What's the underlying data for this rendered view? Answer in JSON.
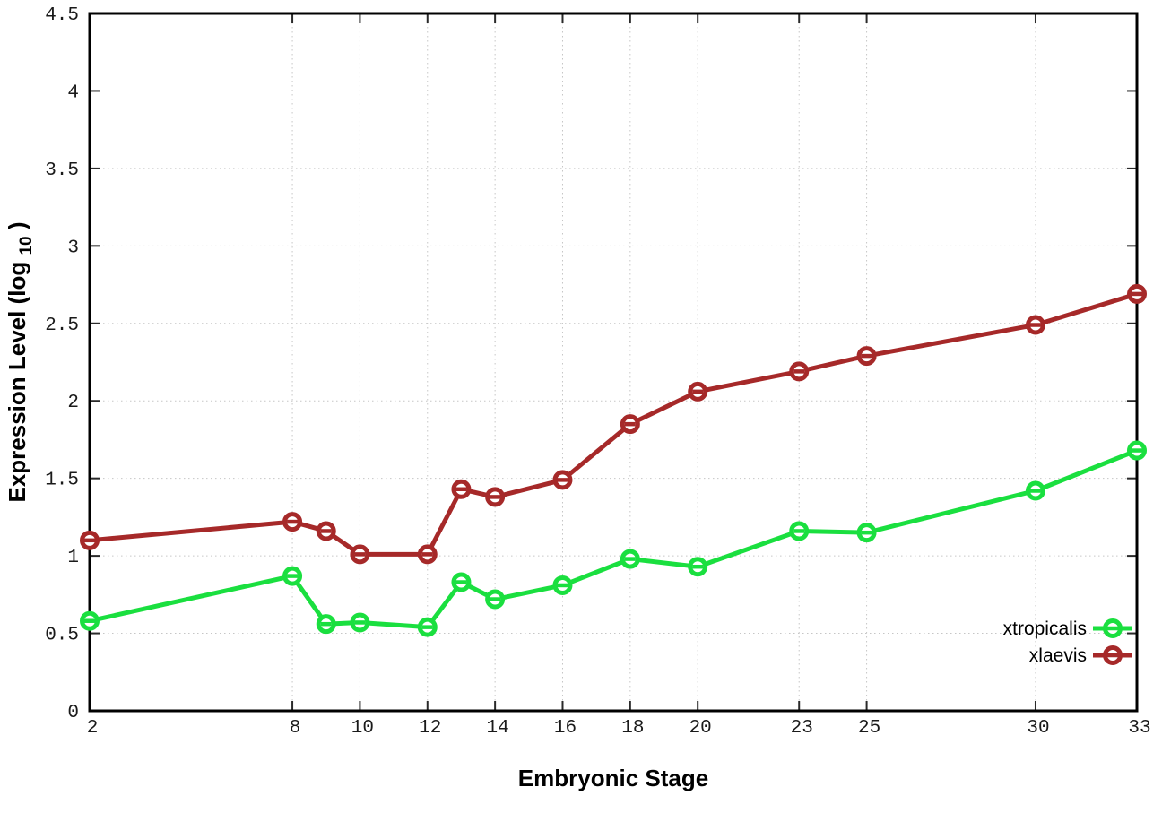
{
  "chart_data": {
    "type": "line",
    "title": "",
    "xlabel": "Embryonic Stage",
    "ylabel": "Expression Level (log10)",
    "ylabel_parts": {
      "pre": "Expression Level (log",
      "sub": "10",
      "post": ")"
    },
    "x": [
      2,
      8,
      9,
      10,
      12,
      13,
      14,
      16,
      18,
      20,
      23,
      25,
      30,
      33
    ],
    "xlim": [
      2,
      33
    ],
    "ylim": [
      0,
      4.5
    ],
    "xticks": [
      2,
      8,
      10,
      12,
      14,
      16,
      18,
      20,
      23,
      25,
      30,
      33
    ],
    "yticks": [
      0,
      0.5,
      1,
      1.5,
      2,
      2.5,
      3,
      3.5,
      4,
      4.5
    ],
    "grid": true,
    "legend_position": "inside bottom right",
    "series": [
      {
        "name": "xtropicalis",
        "color": "#1adf3f",
        "marker": "open-circle",
        "values": [
          0.58,
          0.87,
          0.56,
          0.57,
          0.54,
          0.83,
          0.72,
          0.81,
          0.98,
          0.93,
          1.16,
          1.15,
          1.42,
          1.68
        ]
      },
      {
        "name": "xlaevis",
        "color": "#a62929",
        "marker": "open-circle",
        "values": [
          1.1,
          1.22,
          1.16,
          1.01,
          1.01,
          1.43,
          1.38,
          1.49,
          1.85,
          2.06,
          2.19,
          2.29,
          2.49,
          2.69
        ]
      }
    ],
    "colors": {
      "background": "#ffffff",
      "grid": "#c6c6c6",
      "border": "#000000",
      "tick": "#2a2a2a",
      "tick_label": "#1a1a1a"
    }
  }
}
